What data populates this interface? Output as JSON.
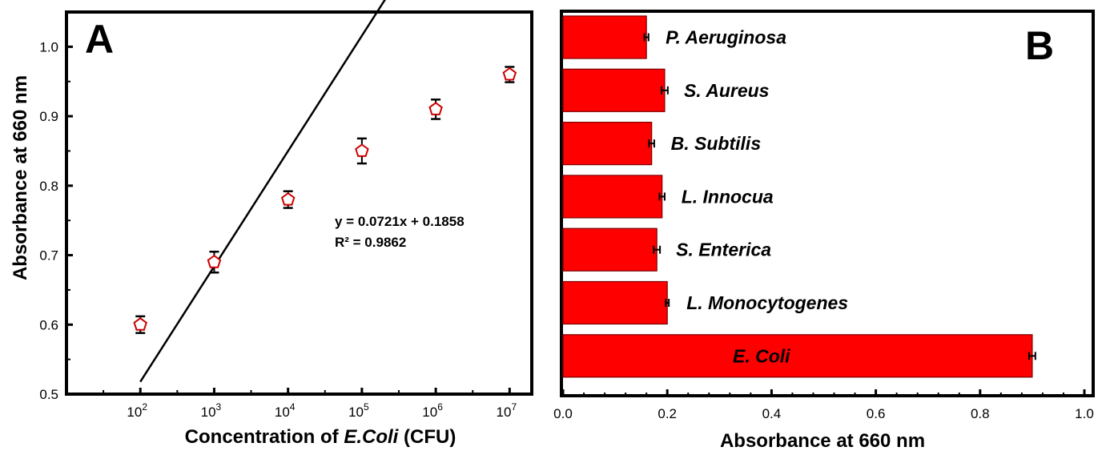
{
  "chart_data": [
    {
      "type": "scatter",
      "panel": "A",
      "title": "",
      "xlabel_prefix": "Concentration of ",
      "xlabel_italic": "E.Coli",
      "xlabel_suffix": " (CFU)",
      "ylabel": "Absorbance at 660 nm",
      "x_exponents": [
        2,
        3,
        4,
        5,
        6,
        7
      ],
      "x_tick_base": "10",
      "xlim": [
        1.0,
        7.3
      ],
      "ylim": [
        0.5,
        1.05
      ],
      "yticks": [
        "0.5",
        "0.6",
        "0.7",
        "0.8",
        "0.9",
        "1.0"
      ],
      "series": [
        {
          "name": "E.Coli",
          "x": [
            2,
            3,
            4,
            5,
            6,
            7
          ],
          "y": [
            0.6,
            0.69,
            0.78,
            0.85,
            0.91,
            0.96
          ],
          "err": [
            0.012,
            0.015,
            0.012,
            0.018,
            0.014,
            0.011
          ],
          "color": "#cc0000"
        }
      ],
      "fit": {
        "slope": 0.0721,
        "intercept": 0.1858,
        "x_per_unit": 2.3026
      },
      "annotations": [
        "y = 0.0721x + 0.1858",
        "R² = 0.9862"
      ]
    },
    {
      "type": "bar",
      "orientation": "horizontal",
      "panel": "B",
      "xlabel": "Absorbance at 660 nm",
      "xlim": [
        0.0,
        1.0
      ],
      "xticks": [
        "0.0",
        "0.2",
        "0.4",
        "0.6",
        "0.8",
        "1.0"
      ],
      "categories": [
        "P. Aeruginosa",
        "S. Aureus",
        "B. Subtilis",
        "L. Innocua",
        "S. Enterica",
        "L. Monocytogenes",
        "E. Coli"
      ],
      "values": [
        0.16,
        0.195,
        0.17,
        0.19,
        0.18,
        0.2,
        0.9
      ],
      "err": [
        0.004,
        0.006,
        0.005,
        0.005,
        0.006,
        0.003,
        0.006
      ],
      "color": "#ff0000"
    }
  ]
}
